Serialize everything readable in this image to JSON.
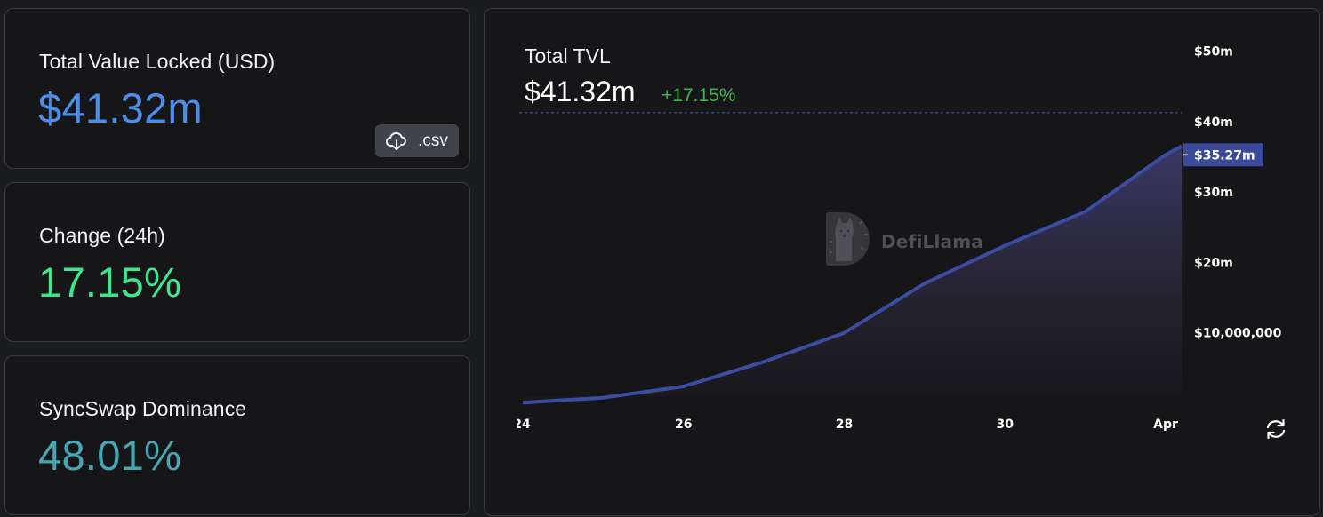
{
  "stats": {
    "tvl": {
      "label": "Total Value Locked (USD)",
      "value": "$41.32m",
      "color": "#4a8eea"
    },
    "change": {
      "label": "Change (24h)",
      "value": "17.15%",
      "color": "#3de68f"
    },
    "dominance": {
      "label": "SyncSwap Dominance",
      "value": "48.01%",
      "color": "#45a6b4"
    },
    "csv_button": {
      "label": ".csv",
      "icon": "cloud-download-icon"
    }
  },
  "chart_header": {
    "title": "Total TVL",
    "value": "$41.32m",
    "change": "+17.15%"
  },
  "watermark": {
    "text": "DefiLlama",
    "icon": "defillama-logo-icon"
  },
  "refresh": {
    "icon": "refresh-icon"
  },
  "chart_data": {
    "type": "area",
    "title": "Total TVL",
    "xlabel": "",
    "ylabel": "",
    "x": [
      24,
      25,
      26,
      27,
      28,
      29,
      30,
      31,
      32,
      32.2
    ],
    "series": [
      {
        "name": "TVL",
        "values": [
          0.1,
          0.8,
          2.4,
          5.9,
          10.0,
          17.0,
          22.4,
          27.2,
          35.27,
          36.5
        ],
        "color": "#3b4da1"
      }
    ],
    "x_ticks": [
      {
        "value": 24,
        "label": "24"
      },
      {
        "value": 26,
        "label": "26"
      },
      {
        "value": 28,
        "label": "28"
      },
      {
        "value": 30,
        "label": "30"
      },
      {
        "value": 32,
        "label": "Apr"
      }
    ],
    "y_ticks": [
      {
        "value": 10,
        "label": "$10,000,000"
      },
      {
        "value": 20,
        "label": "$20m"
      },
      {
        "value": 30,
        "label": "$30m"
      },
      {
        "value": 40,
        "label": "$40m"
      },
      {
        "value": 50,
        "label": "$50m"
      }
    ],
    "ylim": [
      0,
      50
    ],
    "xlim": [
      24,
      32.2
    ],
    "y_units": "millions USD",
    "crosshair_value": 41.32,
    "last_value_label": "$35.27m",
    "last_value": 35.27,
    "grid": false,
    "legend": "none"
  }
}
